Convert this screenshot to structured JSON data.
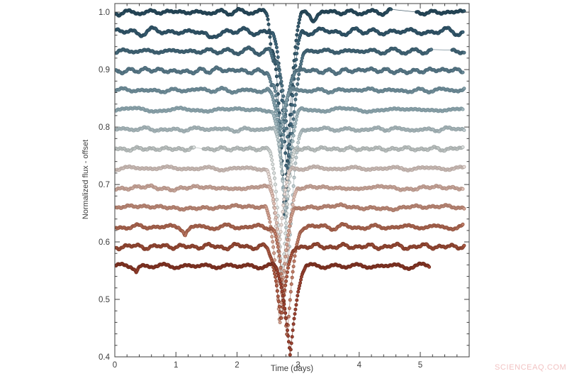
{
  "page": {
    "background": "#ffffff"
  },
  "watermark": {
    "text": "SCIENCEAQ.COM",
    "color": "#f2c3c3"
  },
  "chart_data": {
    "type": "scatter",
    "title": "",
    "xlabel": "Time (days)",
    "ylabel": "Normalized flux - offset",
    "xlim": [
      0,
      5.8
    ],
    "ylim": [
      0.4,
      1.015
    ],
    "x_major_ticks": [
      0,
      1,
      2,
      3,
      4,
      5
    ],
    "x_minor_step": 0.2,
    "y_major_ticks": [
      0.4,
      0.5,
      0.6,
      0.7,
      0.8,
      0.9,
      1.0
    ],
    "y_minor_step": 0.02,
    "grid": false,
    "legend": "none",
    "marker": "circle",
    "marker_radius_px": 2.1,
    "cadence_days": 0.011,
    "style": {
      "frame_color": "#3f3f3f",
      "text_color": "#3d3d3d",
      "tick_direction": "in"
    },
    "description": "Fourteen stacked transit light curves, vertically offset (~0.034 each), colored dark teal (top) through pale gray to dark brick red (bottom). Every curve shows a deep narrow flux dip near t = 2.7-2.9 days; the dips funnel downward, the deepest reaching flux 0.40.",
    "series": [
      {
        "seed": 11,
        "baseline": 1.0,
        "fill": "#34596b",
        "line": "#1f3d4d",
        "dip_center": 2.78,
        "dip_min": 0.645,
        "dip_half_width": 0.3,
        "noise_amp": 0.0045,
        "t_start": 0.02,
        "t_end": 5.72,
        "gaps": [
          [
            4.52,
            4.93
          ]
        ],
        "extra_dips": [
          {
            "center": 2.56,
            "min": 0.962,
            "half_width": 0.1
          },
          {
            "center": 3.25,
            "min": 0.983,
            "half_width": 0.18
          }
        ]
      },
      {
        "seed": 22,
        "baseline": 0.966,
        "fill": "#3f667a",
        "line": "#28485a",
        "dip_center": 2.82,
        "dip_min": 0.7,
        "dip_half_width": 0.26,
        "noise_amp": 0.006,
        "t_start": 0.02,
        "t_end": 5.7,
        "gaps": [],
        "extra_dips": [
          {
            "center": 1.55,
            "min": 0.952,
            "half_width": 0.22
          }
        ]
      },
      {
        "seed": 33,
        "baseline": 0.932,
        "fill": "#527687",
        "line": "#365666",
        "dip_center": 2.86,
        "dip_min": 0.73,
        "dip_half_width": 0.27,
        "noise_amp": 0.005,
        "t_start": 0.02,
        "t_end": 5.72,
        "gaps": [
          [
            5.18,
            5.52
          ]
        ],
        "extra_dips": [
          {
            "center": 2.6,
            "min": 0.912,
            "half_width": 0.09
          }
        ]
      },
      {
        "seed": 44,
        "baseline": 0.898,
        "fill": "#6b8c99",
        "line": "#4a6877",
        "dip_center": 2.74,
        "dip_min": 0.765,
        "dip_half_width": 0.24,
        "noise_amp": 0.0045,
        "t_start": 0.02,
        "t_end": 5.7,
        "gaps": [],
        "extra_dips": [
          {
            "center": 2.56,
            "min": 0.878,
            "half_width": 0.08
          }
        ]
      },
      {
        "seed": 55,
        "baseline": 0.864,
        "fill": "#87a2ab",
        "line": "#5f7c88",
        "dip_center": 2.7,
        "dip_min": 0.79,
        "dip_half_width": 0.22,
        "noise_amp": 0.0038,
        "t_start": 0.02,
        "t_end": 5.72,
        "gaps": [],
        "extra_dips": []
      },
      {
        "seed": 66,
        "baseline": 0.83,
        "fill": "#a5bac0",
        "line": "#7b939b",
        "dip_center": 2.8,
        "dip_min": 0.64,
        "dip_half_width": 0.25,
        "noise_amp": 0.0035,
        "t_start": 0.02,
        "t_end": 5.7,
        "gaps": [],
        "extra_dips": []
      },
      {
        "seed": 77,
        "baseline": 0.796,
        "fill": "#c3cfd1",
        "line": "#93a2a6",
        "dip_center": 2.84,
        "dip_min": 0.56,
        "dip_half_width": 0.24,
        "noise_amp": 0.0032,
        "t_start": 0.02,
        "t_end": 5.72,
        "gaps": [],
        "extra_dips": []
      },
      {
        "seed": 88,
        "baseline": 0.762,
        "fill": "#dde2e0",
        "line": "#a3a9a8",
        "dip_center": 2.74,
        "dip_min": 0.52,
        "dip_half_width": 0.23,
        "noise_amp": 0.0032,
        "t_start": 0.02,
        "t_end": 5.7,
        "gaps": [
          [
            1.3,
            1.44
          ]
        ],
        "extra_dips": []
      },
      {
        "seed": 99,
        "baseline": 0.728,
        "fill": "#e9ddd8",
        "line": "#b3a49e",
        "dip_center": 2.68,
        "dip_min": 0.57,
        "dip_half_width": 0.22,
        "noise_amp": 0.0032,
        "t_start": 0.02,
        "t_end": 5.72,
        "gaps": [],
        "extra_dips": []
      },
      {
        "seed": 110,
        "baseline": 0.694,
        "fill": "#e2c4ba",
        "line": "#b08e82",
        "dip_center": 2.76,
        "dip_min": 0.48,
        "dip_half_width": 0.24,
        "noise_amp": 0.0036,
        "t_start": 0.02,
        "t_end": 5.7,
        "gaps": [],
        "extra_dips": []
      },
      {
        "seed": 121,
        "baseline": 0.66,
        "fill": "#d2a393",
        "line": "#a57463",
        "dip_center": 2.7,
        "dip_min": 0.455,
        "dip_half_width": 0.25,
        "noise_amp": 0.004,
        "t_start": 0.02,
        "t_end": 5.72,
        "gaps": [],
        "extra_dips": []
      },
      {
        "seed": 132,
        "baseline": 0.626,
        "fill": "#c07f6a",
        "line": "#93533f",
        "dip_center": 2.82,
        "dip_min": 0.43,
        "dip_half_width": 0.26,
        "noise_amp": 0.0045,
        "t_start": 0.02,
        "t_end": 5.7,
        "gaps": [],
        "extra_dips": [
          {
            "center": 1.15,
            "min": 0.614,
            "half_width": 0.12
          }
        ]
      },
      {
        "seed": 143,
        "baseline": 0.592,
        "fill": "#ae5d46",
        "line": "#7e3a28",
        "dip_center": 2.72,
        "dip_min": 0.465,
        "dip_half_width": 0.27,
        "noise_amp": 0.004,
        "t_start": 0.02,
        "t_end": 5.72,
        "gaps": [],
        "extra_dips": []
      },
      {
        "seed": 154,
        "baseline": 0.558,
        "fill": "#9c4331",
        "line": "#6e2a1c",
        "dip_center": 2.87,
        "dip_min": 0.402,
        "dip_half_width": 0.28,
        "noise_amp": 0.004,
        "t_start": 0.02,
        "t_end": 5.15,
        "gaps": [],
        "extra_dips": [
          {
            "center": 0.35,
            "min": 0.549,
            "half_width": 0.1
          }
        ]
      }
    ]
  }
}
